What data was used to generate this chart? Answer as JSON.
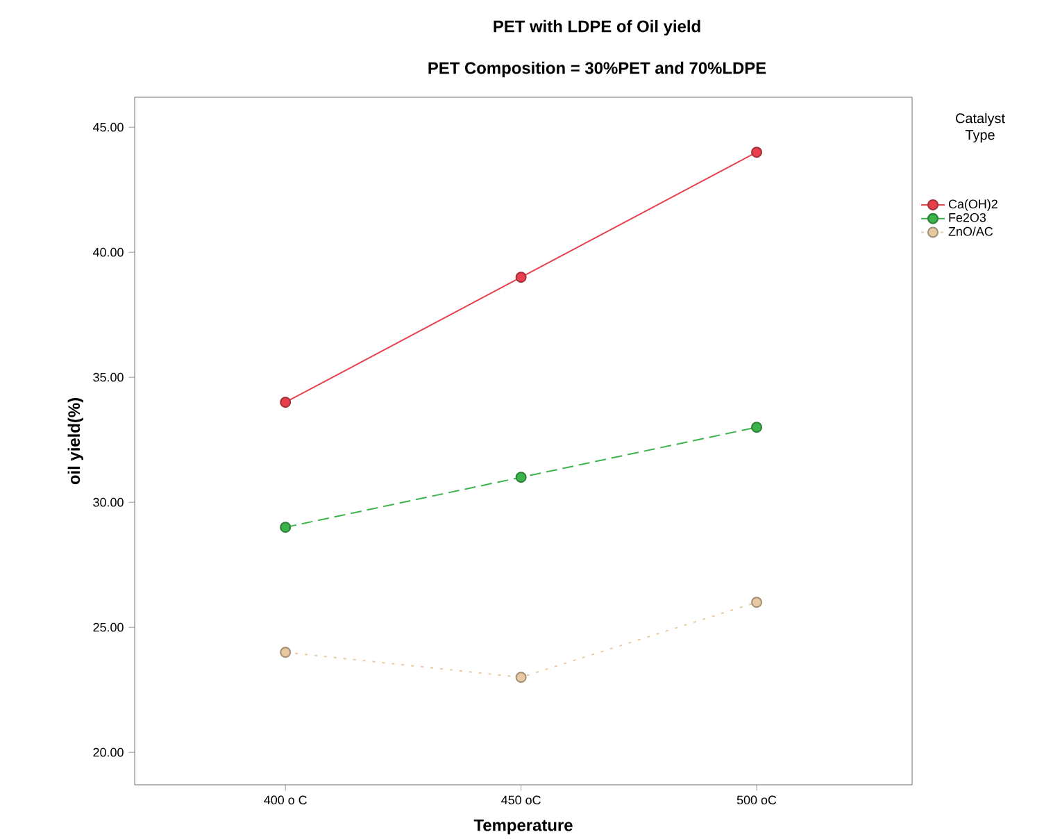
{
  "chart_data": {
    "type": "line",
    "title": "PET with LDPE of Oil yield",
    "subtitle": "PET Composition = 30%PET and 70%LDPE",
    "xlabel": "Temperature",
    "ylabel": "oil yield(%)",
    "legend_title": "Catalyst Type",
    "categories": [
      "400 o C",
      "450 oC",
      "500 oC"
    ],
    "series": [
      {
        "name": "Ca(OH)2",
        "color": "#e8414e",
        "values": [
          34,
          39,
          44
        ],
        "line_style": "solid"
      },
      {
        "name": "Fe2O3",
        "color": "#3cb44b",
        "values": [
          29,
          31,
          33
        ],
        "line_style": "dashed"
      },
      {
        "name": "ZnO/AC",
        "color": "#e9c9a3",
        "values": [
          24,
          23,
          26
        ],
        "line_style": "dotted"
      }
    ],
    "ylim": [
      18.7,
      46.2
    ],
    "yticks": [
      {
        "value": 20,
        "label": "20.00"
      },
      {
        "value": 25,
        "label": "25.00"
      },
      {
        "value": 30,
        "label": "30.00"
      },
      {
        "value": 35,
        "label": "35.00"
      },
      {
        "value": 40,
        "label": "40.00"
      },
      {
        "value": 45,
        "label": "45.00"
      }
    ],
    "marker": "circle",
    "legend": "right",
    "grid": false
  }
}
